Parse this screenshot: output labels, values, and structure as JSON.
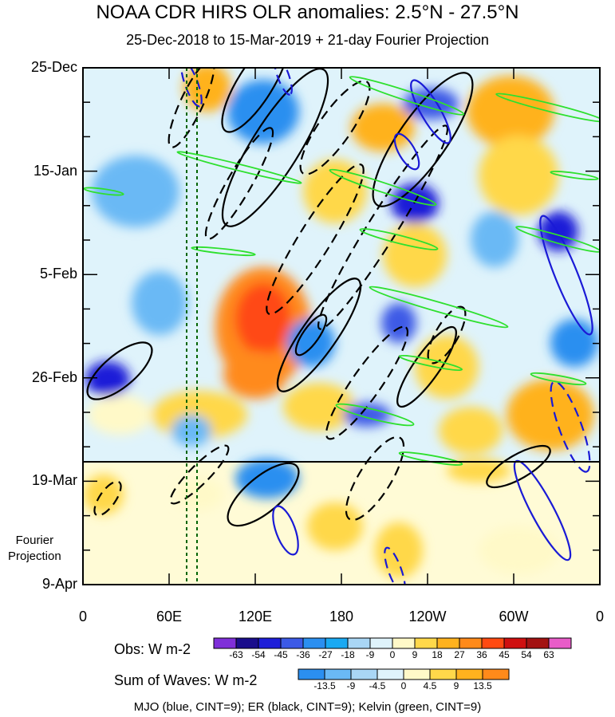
{
  "chart_data": {
    "type": "heatmap",
    "title": "NOAA CDR HIRS OLR anomalies: 2.5°N - 27.5°N",
    "subtitle": "25-Dec-2018 to 15-Mar-2019 + 21-day Fourier Projection",
    "x_axis": {
      "ticks": [
        "0",
        "60E",
        "120E",
        "180",
        "120W",
        "60W",
        "0"
      ],
      "tick_lon": [
        0,
        60,
        120,
        180,
        240,
        300,
        360
      ],
      "range": [
        0,
        360
      ]
    },
    "y_axis": {
      "ticks": [
        "25-Dec",
        "15-Jan",
        "5-Feb",
        "26-Feb",
        "19-Mar",
        "9-Apr"
      ],
      "tick_day": [
        0,
        21,
        42,
        63,
        84,
        105
      ],
      "range_days": [
        0,
        105
      ],
      "observation_end_day": 80
    },
    "projection_label": [
      "Fourier",
      "Projection"
    ],
    "reference_lines_lon": [
      71,
      78
    ],
    "obs_colorbar": {
      "title": "Obs: W m-2",
      "levels": [
        "-63",
        "-54",
        "-45",
        "-36",
        "-27",
        "-18",
        "-9",
        "0",
        "9",
        "18",
        "27",
        "36",
        "45",
        "54",
        "63"
      ],
      "colors": [
        "#7f2fd9",
        "#1a0d8c",
        "#1e1ed8",
        "#3c5ae6",
        "#2b8ff0",
        "#1aa9f2",
        "#a9d6f5",
        "#dff3fb",
        "#fff9c8",
        "#ffd84a",
        "#ffb21e",
        "#ff8a1a",
        "#ff4a12",
        "#cf1010",
        "#a31212",
        "#e85cc8"
      ]
    },
    "wave_colorbar": {
      "title": "Sum of Waves: W m-2",
      "levels": [
        "-13.5",
        "-9",
        "-4.5",
        "0",
        "4.5",
        "9",
        "13.5"
      ],
      "colors": [
        "#2b8ff0",
        "#6ab9f5",
        "#a9d6f5",
        "#dff3fb",
        "#fff9c8",
        "#ffd84a",
        "#ffb21e",
        "#ff8a1a"
      ]
    },
    "footnote": "MJO (blue, CINT=9); ER (black, CINT=9); Kelvin (green, CINT=9)"
  }
}
